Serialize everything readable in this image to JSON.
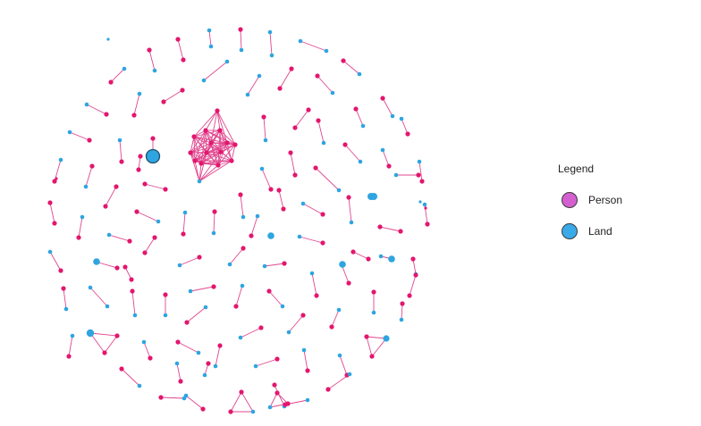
{
  "legend": {
    "title": "Legend",
    "items": [
      {
        "label": "Person",
        "color": "#d45fd0"
      },
      {
        "label": "Land",
        "color": "#3aa9e8"
      }
    ]
  },
  "colors": {
    "person_node": "#e3166e",
    "land_node": "#2ea5e0",
    "edge": "#e0478f"
  }
}
